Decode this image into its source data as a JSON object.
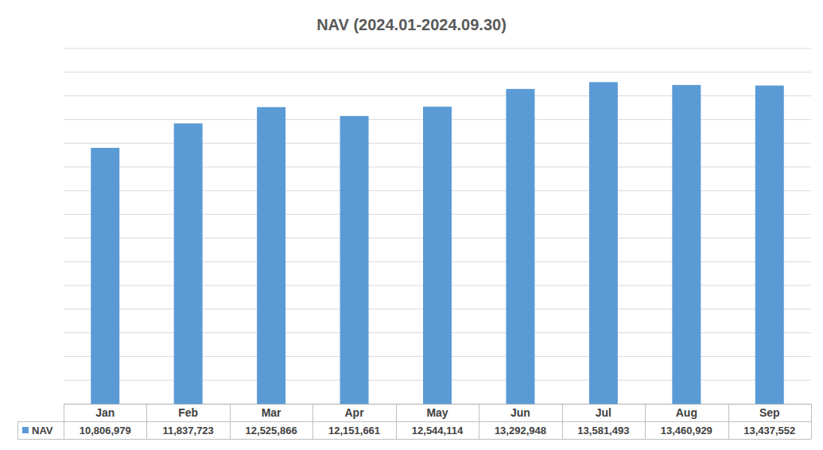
{
  "chart_data": {
    "type": "bar",
    "title": "NAV (2024.01-2024.09.30)",
    "categories": [
      "Jan",
      "Feb",
      "Mar",
      "Apr",
      "May",
      "Jun",
      "Jul",
      "Aug",
      "Sep"
    ],
    "series": [
      {
        "name": "NAV",
        "color": "#5b9bd5",
        "values": [
          10806979,
          11837723,
          12525866,
          12151661,
          12544114,
          13292948,
          13581493,
          13460929,
          13437552
        ],
        "value_labels": [
          "10,806,979",
          "11,837,723",
          "12,525,866",
          "12,151,661",
          "12,544,114",
          "13,292,948",
          "13,581,493",
          "13,460,929",
          "13,437,552"
        ]
      }
    ],
    "ylim": [
      0,
      15000000
    ],
    "yticks": [
      0,
      1000000,
      2000000,
      3000000,
      4000000,
      5000000,
      6000000,
      7000000,
      8000000,
      9000000,
      10000000,
      11000000,
      12000000,
      13000000,
      14000000,
      15000000
    ],
    "grid": true,
    "tick_labels": false
  }
}
